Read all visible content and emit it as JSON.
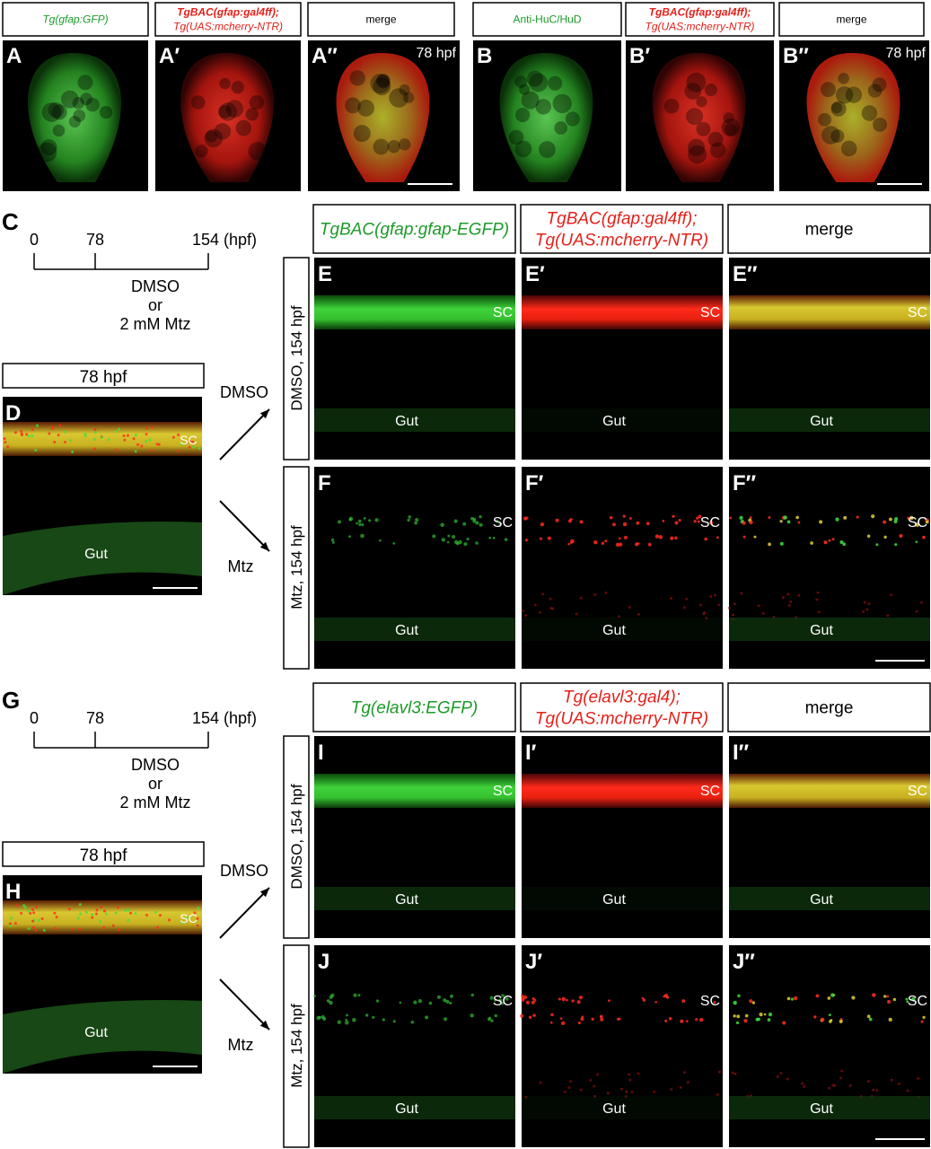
{
  "top_groups": [
    {
      "headers": [
        {
          "lines": [
            "Tg(gfap:GFP)"
          ],
          "color": "green",
          "italic": true
        },
        {
          "lines": [
            "TgBAC(gfap:gal4ff);",
            "Tg(UAS:mcherry-NTR)"
          ],
          "color": "red",
          "italic": true
        },
        {
          "lines": [
            "merge"
          ]
        }
      ],
      "panels": [
        {
          "label": "A"
        },
        {
          "label": "A′"
        },
        {
          "label": "A″",
          "annotation": "78 hpf"
        }
      ]
    },
    {
      "headers": [
        {
          "lines": [
            "Anti-HuC/HuD"
          ],
          "color": "green"
        },
        {
          "lines": [
            "TgBAC(gfap:gal4ff);",
            "Tg(UAS:mcherry-NTR)"
          ],
          "color": "red",
          "italic": true
        },
        {
          "lines": [
            "merge"
          ]
        }
      ],
      "panels": [
        {
          "label": "B"
        },
        {
          "label": "B′"
        },
        {
          "label": "B″",
          "annotation": "78 hpf"
        }
      ]
    }
  ],
  "experiments": [
    {
      "label": "C",
      "timeline": {
        "ticks": [
          "0",
          "78",
          "154 (hpf)"
        ],
        "treatment": [
          "DMSO",
          "or",
          "2 mM Mtz"
        ]
      },
      "stage_box": "78 hpf",
      "stage_panel": {
        "label": "D",
        "markers": [
          "SC",
          "Gut"
        ]
      },
      "arrows": [
        "DMSO",
        "Mtz"
      ],
      "headers": [
        {
          "lines": [
            "TgBAC(gfap:gfap-EGFP)"
          ],
          "color": "green",
          "italic": true
        },
        {
          "lines": [
            "TgBAC(gfap:gal4ff);",
            "Tg(UAS:mcherry-NTR)"
          ],
          "color": "red",
          "italic": true
        },
        {
          "lines": [
            "merge"
          ]
        }
      ],
      "rows": [
        {
          "condition": "DMSO, 154 hpf",
          "panels": [
            {
              "label": "E",
              "markers": [
                "SC",
                "Gut"
              ]
            },
            {
              "label": "E′",
              "markers": [
                "SC",
                "Gut"
              ]
            },
            {
              "label": "E″",
              "markers": [
                "SC",
                "Gut"
              ]
            }
          ]
        },
        {
          "condition": "Mtz, 154 hpf",
          "panels": [
            {
              "label": "F",
              "markers": [
                "SC",
                "Gut"
              ]
            },
            {
              "label": "F′",
              "markers": [
                "SC",
                "Gut"
              ]
            },
            {
              "label": "F″",
              "markers": [
                "SC",
                "Gut"
              ]
            }
          ]
        }
      ]
    },
    {
      "label": "G",
      "timeline": {
        "ticks": [
          "0",
          "78",
          "154 (hpf)"
        ],
        "treatment": [
          "DMSO",
          "or",
          "2 mM Mtz"
        ]
      },
      "stage_box": "78 hpf",
      "stage_panel": {
        "label": "H",
        "markers": [
          "SC",
          "Gut"
        ]
      },
      "arrows": [
        "DMSO",
        "Mtz"
      ],
      "headers": [
        {
          "lines": [
            "Tg(elavl3:EGFP)"
          ],
          "color": "green",
          "italic": true
        },
        {
          "lines": [
            "Tg(elavl3:gal4);",
            "Tg(UAS:mcherry-NTR)"
          ],
          "color": "red",
          "italic": true
        },
        {
          "lines": [
            "merge"
          ]
        }
      ],
      "rows": [
        {
          "condition": "DMSO, 154 hpf",
          "panels": [
            {
              "label": "I",
              "markers": [
                "SC",
                "Gut"
              ]
            },
            {
              "label": "I′",
              "markers": [
                "SC",
                "Gut"
              ]
            },
            {
              "label": "I″",
              "markers": [
                "SC",
                "Gut"
              ]
            }
          ]
        },
        {
          "condition": "Mtz, 154 hpf",
          "panels": [
            {
              "label": "J",
              "markers": [
                "SC",
                "Gut"
              ]
            },
            {
              "label": "J′",
              "markers": [
                "SC",
                "Gut"
              ]
            },
            {
              "label": "J″",
              "markers": [
                "SC",
                "Gut"
              ]
            }
          ]
        }
      ]
    }
  ]
}
